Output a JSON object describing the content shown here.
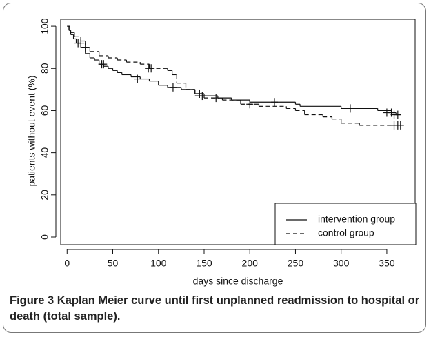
{
  "chart_data": {
    "type": "line",
    "drawstyle": "steps-post",
    "x_label": "days since discharge",
    "y_label": "patients without event (%)",
    "xlim": [
      -7,
      381
    ],
    "ylim": [
      -3.6,
      103.3
    ],
    "xticks": [
      0,
      50,
      100,
      150,
      200,
      250,
      300,
      350
    ],
    "yticks": [
      0,
      20,
      40,
      60,
      80,
      100
    ],
    "legend": "lower right",
    "series": [
      {
        "name": "intervention group",
        "color": "#111111",
        "dash": "solid",
        "x": [
          0,
          2,
          4,
          7,
          10,
          15,
          20,
          25,
          30,
          35,
          40,
          45,
          50,
          55,
          60,
          70,
          80,
          90,
          100,
          110,
          125,
          140,
          150,
          165,
          180,
          200,
          250,
          255,
          300,
          340,
          355,
          360,
          365
        ],
        "values": [
          100,
          98,
          96,
          94,
          92,
          90,
          87,
          85,
          84,
          82,
          81,
          80,
          79,
          78,
          77,
          76,
          75,
          74,
          72,
          71,
          70,
          68,
          67,
          66,
          65,
          64,
          63,
          62,
          61,
          60,
          59,
          58,
          58
        ],
        "censored": {
          "x": [
            12,
            38,
            77,
            116,
            145,
            163,
            227,
            310,
            350,
            355,
            358,
            362
          ],
          "y": [
            92,
            82,
            75,
            71,
            68,
            66,
            64,
            61,
            59,
            59,
            58,
            58
          ]
        }
      },
      {
        "name": "control group",
        "color": "#111111",
        "dash": "dashed",
        "x": [
          0,
          3,
          8,
          15,
          20,
          25,
          35,
          45,
          55,
          65,
          80,
          90,
          110,
          115,
          120,
          130,
          140,
          150,
          170,
          190,
          210,
          240,
          250,
          260,
          280,
          290,
          300,
          320,
          365
        ],
        "values": [
          100,
          97,
          95,
          93,
          90,
          88,
          86,
          85,
          84,
          83,
          82,
          80,
          79,
          77,
          73,
          70,
          67,
          66,
          65,
          63,
          62,
          61,
          60,
          58,
          57,
          56,
          54,
          53,
          53
        ],
        "censored": {
          "x": [
            15,
            20,
            40,
            89,
            92,
            148,
            200,
            358,
            362,
            365
          ],
          "y": [
            92,
            90,
            82,
            80,
            80,
            67,
            63,
            53,
            53,
            53
          ]
        }
      }
    ]
  },
  "caption": {
    "label": "Figure 3",
    "text": "Kaplan Meier curve until first unplanned readmission to hospital or death (total sample)."
  }
}
